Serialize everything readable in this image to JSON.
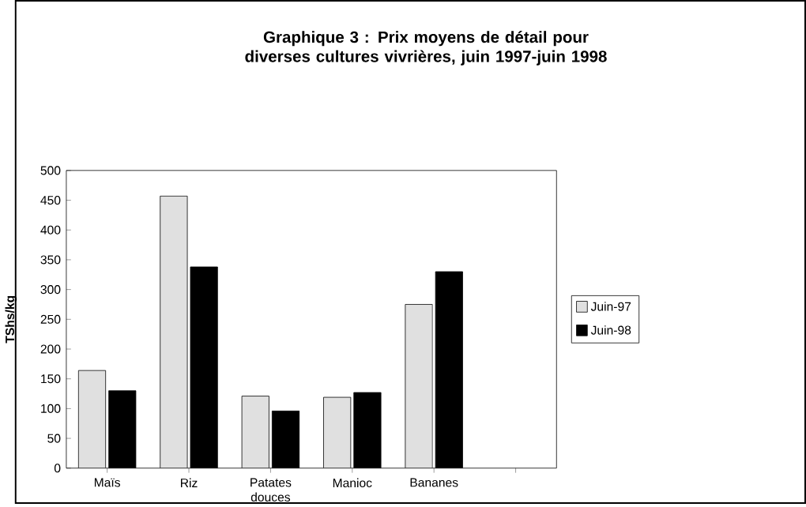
{
  "chart_data": {
    "type": "bar",
    "title": "Graphique 3 : Prix moyens de détail pour diverses cultures vivrières, juin 1997-juin 1998",
    "ylabel": "TShs/kg",
    "categories": [
      "Maïs",
      "Riz",
      "Patates douces",
      "Manioc",
      "Bananes",
      null
    ],
    "series": [
      {
        "name": "Juin-97",
        "color": "#e0e0e0",
        "values": [
          164,
          457,
          121,
          119,
          275,
          null
        ]
      },
      {
        "name": "Juin-98",
        "color": "#000000",
        "values": [
          130,
          338,
          96,
          127,
          330,
          null
        ]
      }
    ],
    "ylim": [
      0,
      500
    ],
    "yticks": [
      0,
      50,
      100,
      150,
      200,
      250,
      300,
      350,
      400,
      450,
      500
    ],
    "grid": false,
    "legend": "right"
  }
}
